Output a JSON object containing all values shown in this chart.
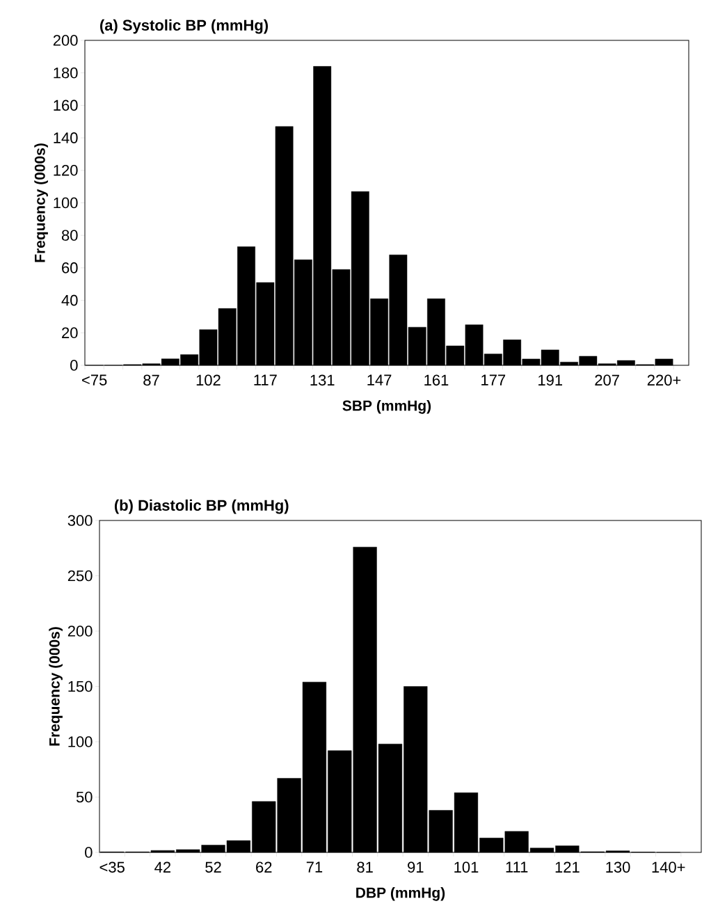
{
  "chart_data": [
    {
      "type": "bar",
      "title": "(a) Systolic BP (mmHg)",
      "xlabel": "SBP (mmHg)",
      "ylabel": "Frequency (000s)",
      "categories": [
        "<75",
        null,
        null,
        "87",
        null,
        null,
        "102",
        null,
        null,
        "117",
        null,
        null,
        "131",
        null,
        null,
        "147",
        null,
        null,
        "161",
        null,
        null,
        "177",
        null,
        null,
        "191",
        null,
        null,
        "207",
        null,
        null,
        "220+"
      ],
      "values": [
        0,
        0,
        0.5,
        1,
        4,
        6.6,
        22,
        35,
        73,
        51,
        147,
        65,
        184,
        59,
        107,
        41,
        68,
        23.5,
        41,
        12,
        25,
        7,
        15.7,
        3.9,
        9.5,
        2,
        5.6,
        1,
        3,
        0.5,
        3.9
      ],
      "color": "#000000",
      "ylim": [
        0,
        200
      ],
      "yticks": [
        0,
        20,
        40,
        60,
        80,
        100,
        120,
        140,
        160,
        180,
        200
      ]
    },
    {
      "type": "bar",
      "title": "(b) Diastolic BP (mmHg)",
      "xlabel": "DBP (mmHg)",
      "ylabel": "Frequency (000s)",
      "categories": [
        "<35",
        null,
        "42",
        null,
        "52",
        null,
        "62",
        null,
        "71",
        null,
        "81",
        null,
        "91",
        null,
        "101",
        null,
        "111",
        null,
        "121",
        null,
        "130",
        null,
        "140+"
      ],
      "values": [
        0.5,
        0.5,
        1.8,
        2.6,
        6.6,
        10.7,
        46,
        67,
        154,
        92,
        276,
        98,
        150,
        38,
        54,
        13,
        19,
        4,
        6,
        0.7,
        1.5,
        0.3,
        0
      ],
      "color": "#000000",
      "ylim": [
        0,
        300
      ],
      "yticks": [
        0,
        50,
        100,
        150,
        200,
        250,
        300
      ]
    }
  ]
}
